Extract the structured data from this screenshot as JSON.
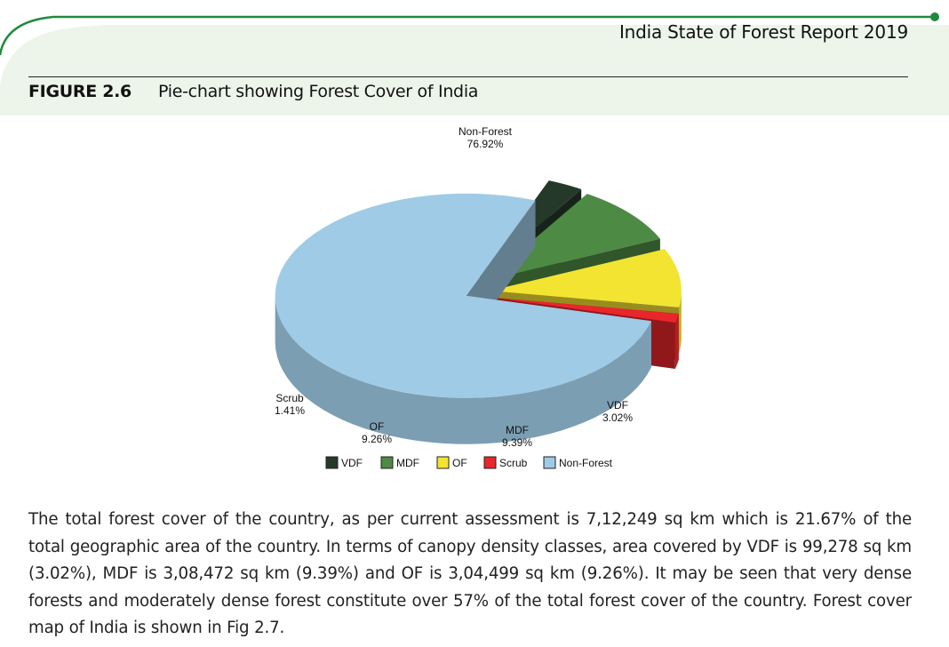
{
  "header": {
    "report_title": "India State of Forest Report 2019"
  },
  "figure": {
    "label": "FIGURE 2.6",
    "title": "Pie-chart showing Forest Cover of India"
  },
  "chart_data": {
    "type": "pie",
    "title": "",
    "style": "3d-exploded",
    "categories": [
      "VDF",
      "MDF",
      "OF",
      "Scrub",
      "Non-Forest"
    ],
    "values": [
      3.02,
      9.39,
      9.26,
      1.41,
      76.92
    ],
    "unit": "%",
    "slice_labels": [
      {
        "name": "Non-Forest",
        "value": "76.92%"
      },
      {
        "name": "VDF",
        "value": "3.02%"
      },
      {
        "name": "MDF",
        "value": "9.39%"
      },
      {
        "name": "OF",
        "value": "9.26%"
      },
      {
        "name": "Scrub",
        "value": "1.41%"
      }
    ],
    "legend": [
      "VDF",
      "MDF",
      "OF",
      "Scrub",
      "Non-Forest"
    ],
    "legend_position": "bottom",
    "colors": {
      "VDF": "#25392a",
      "MDF": "#4d8a44",
      "OF": "#f3e432",
      "Scrub": "#e8262b",
      "Non-Forest": "#9fcbe6"
    }
  },
  "body_text": "The total forest cover of the country, as per current assessment is 7,12,249 sq km which is 21.67% of the total geographic area of the country. In terms of canopy density classes, area covered by VDF is 99,278 sq km (3.02%), MDF is 3,08,472 sq km (9.39%) and OF is 3,04,499 sq km (9.26%). It may be seen that very dense forests and moderately dense forest constitute over 57% of the total forest cover of the country. Forest cover map of India is shown in Fig 2.7.",
  "theme": {
    "accent": "#1e8a3e",
    "panel": "#edf5ea"
  }
}
